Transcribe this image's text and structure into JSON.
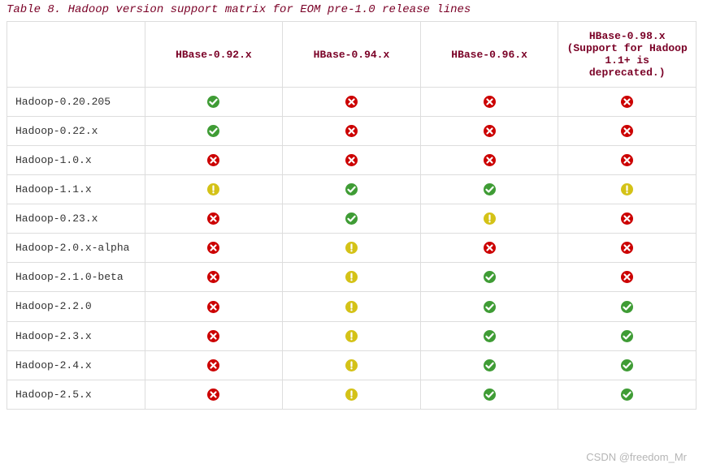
{
  "caption": {
    "text": "Table 8. Hadoop version support matrix for EOM pre-1.0 release lines",
    "color": "#7a0026"
  },
  "columns": [
    {
      "label": ""
    },
    {
      "label": "HBase-0.92.x"
    },
    {
      "label": "HBase-0.94.x"
    },
    {
      "label": "HBase-0.96.x"
    },
    {
      "label": "HBase-0.98.x (Support for Hadoop 1.1+ is deprecated.)"
    }
  ],
  "header_text_color": "#7a0026",
  "row_text_color": "#333333",
  "border_color": "#dddddd",
  "icons": {
    "yes": {
      "bg": "#3f9c35",
      "glyph": "check",
      "stroke": "#ffffff",
      "meaning": "supported"
    },
    "no": {
      "bg": "#cc0000",
      "glyph": "cross",
      "stroke": "#ffffff",
      "meaning": "not supported"
    },
    "warn": {
      "bg": "#d4c217",
      "glyph": "bang",
      "stroke": "#ffffff",
      "meaning": "warning / partial"
    }
  },
  "rows": [
    {
      "label": "Hadoop-0.20.205",
      "cells": [
        "yes",
        "no",
        "no",
        "no"
      ]
    },
    {
      "label": "Hadoop-0.22.x",
      "cells": [
        "yes",
        "no",
        "no",
        "no"
      ]
    },
    {
      "label": "Hadoop-1.0.x",
      "cells": [
        "no",
        "no",
        "no",
        "no"
      ]
    },
    {
      "label": "Hadoop-1.1.x",
      "cells": [
        "warn",
        "yes",
        "yes",
        "warn"
      ]
    },
    {
      "label": "Hadoop-0.23.x",
      "cells": [
        "no",
        "yes",
        "warn",
        "no"
      ]
    },
    {
      "label": "Hadoop-2.0.x-alpha",
      "cells": [
        "no",
        "warn",
        "no",
        "no"
      ]
    },
    {
      "label": "Hadoop-2.1.0-beta",
      "cells": [
        "no",
        "warn",
        "yes",
        "no"
      ]
    },
    {
      "label": "Hadoop-2.2.0",
      "cells": [
        "no",
        "warn",
        "yes",
        "yes"
      ]
    },
    {
      "label": "Hadoop-2.3.x",
      "cells": [
        "no",
        "warn",
        "yes",
        "yes"
      ]
    },
    {
      "label": "Hadoop-2.4.x",
      "cells": [
        "no",
        "warn",
        "yes",
        "yes"
      ]
    },
    {
      "label": "Hadoop-2.5.x",
      "cells": [
        "no",
        "warn",
        "yes",
        "yes"
      ]
    }
  ],
  "watermark": "CSDN @freedom_Mr"
}
